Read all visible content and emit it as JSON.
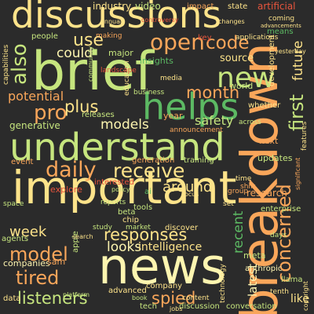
{
  "colors": {
    "background": "#2b2b2b",
    "palette": {
      "cream": "#fdf5b0",
      "yellow": "#fde38a",
      "lime": "#c6e57e",
      "green": "#5cb963",
      "orange": "#f9a65a",
      "red": "#e8553d",
      "peach": "#fbcf8f"
    }
  },
  "words": [
    {
      "text": "discussions",
      "color": "yellow"
    },
    {
      "text": "brief",
      "color": "lime"
    },
    {
      "text": "breakdown",
      "color": "orange"
    },
    {
      "text": "helps",
      "color": "green"
    },
    {
      "text": "understand",
      "color": "lime"
    },
    {
      "text": "important",
      "color": "yellow"
    },
    {
      "text": "news",
      "color": "cream"
    },
    {
      "text": "new",
      "color": "lime"
    },
    {
      "text": "daily",
      "color": "orange"
    },
    {
      "text": "receive",
      "color": "yellow"
    },
    {
      "text": "open",
      "color": "orange"
    },
    {
      "text": "use",
      "color": "yellow"
    },
    {
      "text": "code",
      "color": "orange"
    },
    {
      "text": "also",
      "color": "lime"
    },
    {
      "text": "could",
      "color": "cream"
    },
    {
      "text": "pro",
      "color": "orange"
    },
    {
      "text": "plus",
      "color": "yellow"
    },
    {
      "text": "month",
      "color": "orange"
    },
    {
      "text": "models",
      "color": "cream"
    },
    {
      "text": "concerned",
      "color": "orange"
    },
    {
      "text": "first",
      "color": "lime"
    },
    {
      "text": "future",
      "color": "yellow"
    },
    {
      "text": "tired",
      "color": "orange"
    },
    {
      "text": "model",
      "color": "orange"
    },
    {
      "text": "listeners",
      "color": "lime"
    },
    {
      "text": "spied",
      "color": "orange"
    },
    {
      "text": "responses",
      "color": "yellow"
    },
    {
      "text": "around",
      "color": "yellow"
    },
    {
      "text": "week",
      "color": "yellow"
    },
    {
      "text": "recent",
      "color": "green"
    },
    {
      "text": "latest",
      "color": "cream"
    },
    {
      "text": "safety",
      "color": "lime"
    },
    {
      "text": "potential",
      "color": "orange"
    },
    {
      "text": "source",
      "color": "yellow"
    },
    {
      "text": "generative",
      "color": "lime"
    },
    {
      "text": "like",
      "color": "yellow"
    },
    {
      "text": "looks",
      "color": "cream"
    },
    {
      "text": "intelligence",
      "color": "yellow"
    },
    {
      "text": "industry",
      "color": "yellow"
    },
    {
      "text": "video",
      "color": "lime"
    },
    {
      "text": "impact",
      "color": "orange"
    },
    {
      "text": "state",
      "color": "yellow"
    },
    {
      "text": "artificial",
      "color": "red"
    },
    {
      "text": "people",
      "color": "lime"
    },
    {
      "text": "making",
      "color": "orange"
    },
    {
      "text": "insights",
      "color": "green"
    },
    {
      "text": "major",
      "color": "lime"
    },
    {
      "text": "world",
      "color": "lime"
    },
    {
      "text": "year",
      "color": "orange"
    },
    {
      "text": "research",
      "color": "orange"
    },
    {
      "text": "updates",
      "color": "lime"
    },
    {
      "text": "next",
      "color": "orange"
    },
    {
      "text": "tools",
      "color": "lime"
    },
    {
      "text": "interested",
      "color": "red"
    },
    {
      "text": "explore",
      "color": "red"
    },
    {
      "text": "generation",
      "color": "orange"
    },
    {
      "text": "training",
      "color": "lime"
    },
    {
      "text": "releases",
      "color": "lime"
    },
    {
      "text": "event",
      "color": "orange"
    },
    {
      "text": "discover",
      "color": "yellow"
    },
    {
      "text": "companies",
      "color": "cream"
    },
    {
      "text": "sam",
      "color": "orange"
    },
    {
      "text": "advanced",
      "color": "yellow"
    },
    {
      "text": "company",
      "color": "yellow"
    },
    {
      "text": "discussion",
      "color": "lime"
    },
    {
      "text": "conversation",
      "color": "lime"
    },
    {
      "text": "tech",
      "color": "lime"
    },
    {
      "text": "data",
      "color": "yellow"
    },
    {
      "text": "agents",
      "color": "lime"
    },
    {
      "text": "apple",
      "color": "lime"
    },
    {
      "text": "meta",
      "color": "lime"
    },
    {
      "text": "anthropic",
      "color": "cream"
    },
    {
      "text": "enterprise",
      "color": "lime"
    },
    {
      "text": "llama",
      "color": "lime"
    },
    {
      "text": "ai",
      "color": "green"
    },
    {
      "text": "beta",
      "color": "lime"
    },
    {
      "text": "chip",
      "color": "yellow"
    },
    {
      "text": "development",
      "color": "yellow"
    },
    {
      "text": "applications",
      "color": "yellow"
    },
    {
      "text": "coming",
      "color": "yellow"
    },
    {
      "text": "education",
      "color": "yellow"
    },
    {
      "text": "business",
      "color": "lime"
    },
    {
      "text": "capabilities",
      "color": "yellow"
    },
    {
      "text": "landscape",
      "color": "red"
    },
    {
      "text": "media",
      "color": "yellow"
    },
    {
      "text": "whether",
      "color": "yellow"
    },
    {
      "text": "features",
      "color": "yellow"
    },
    {
      "text": "announcement",
      "color": "orange"
    },
    {
      "text": "controversy",
      "color": "red"
    },
    {
      "text": "across",
      "color": "lime"
    },
    {
      "text": "means",
      "color": "green"
    },
    {
      "text": "time",
      "color": "yellow"
    },
    {
      "text": "key",
      "color": "red"
    },
    {
      "text": "shift",
      "color": "orange"
    },
    {
      "text": "reports",
      "color": "lime"
    },
    {
      "text": "space",
      "color": "lime"
    },
    {
      "text": "group",
      "color": "orange"
    },
    {
      "text": "copyright",
      "color": "yellow"
    },
    {
      "text": "significant",
      "color": "orange"
    },
    {
      "text": "tenth",
      "color": "yellow"
    },
    {
      "text": "study",
      "color": "lime"
    },
    {
      "text": "market",
      "color": "lime"
    },
    {
      "text": "content",
      "color": "yellow"
    },
    {
      "text": "technology",
      "color": "yellow"
    },
    {
      "text": "annual",
      "color": "yellow"
    },
    {
      "text": "changes",
      "color": "yellow"
    },
    {
      "text": "book",
      "color": "lime"
    },
    {
      "text": "jobs",
      "color": "yellow"
    },
    {
      "text": "platform",
      "color": "lime"
    },
    {
      "text": "yesterday",
      "color": "yellow"
    },
    {
      "text": "advancements",
      "color": "yellow"
    },
    {
      "text": "focus",
      "color": "yellow"
    },
    {
      "text": "search",
      "color": "yellow"
    },
    {
      "text": "policy",
      "color": "lime"
    },
    {
      "text": "set",
      "color": "yellow"
    },
    {
      "text": "days",
      "color": "lime"
    },
    {
      "text": "community",
      "color": "lime"
    }
  ]
}
